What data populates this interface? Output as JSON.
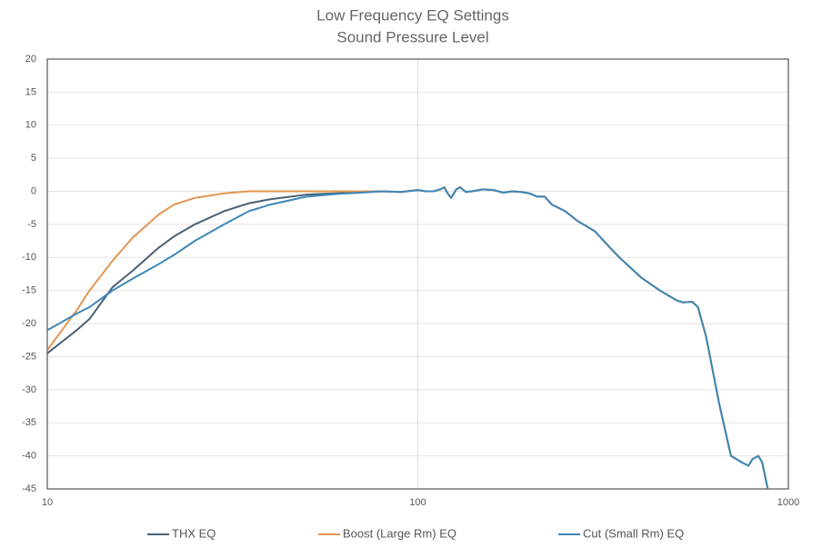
{
  "chart_data": {
    "type": "line",
    "title": "Low Frequency EQ Settings",
    "subtitle": "Sound Pressure Level",
    "x": [
      10,
      12,
      13,
      15,
      17,
      20,
      22,
      25,
      30,
      35,
      40,
      50,
      60,
      70,
      80,
      90,
      100,
      105,
      110,
      115,
      118,
      120,
      123,
      127,
      130,
      135,
      140,
      150,
      160,
      170,
      180,
      190,
      200,
      210,
      220,
      230,
      250,
      270,
      300,
      330,
      350,
      400,
      450,
      500,
      520,
      550,
      570,
      600,
      650,
      700,
      750,
      780,
      800,
      830,
      850,
      880
    ],
    "xlim": [
      10,
      1000
    ],
    "xticks": [
      10,
      100,
      1000
    ],
    "xscale": "log",
    "ylim": [
      -45,
      20
    ],
    "yticks": [
      20,
      15,
      10,
      5,
      0,
      -5,
      -10,
      -15,
      -20,
      -25,
      -30,
      -35,
      -40,
      -45
    ],
    "grid": true,
    "legend": "bottom",
    "series": [
      {
        "name": "THX EQ",
        "color": "#4b5f74",
        "values": [
          -24.5,
          -21,
          -19.3,
          -14.5,
          -12,
          -8.5,
          -6.8,
          -5,
          -3,
          -1.8,
          -1.2,
          -0.5,
          -0.3,
          -0.1,
          0,
          -0.1,
          0.2,
          0,
          0,
          0.3,
          0.6,
          -0.2,
          -1,
          0.3,
          0.6,
          -0.1,
          0,
          0.3,
          0.2,
          -0.2,
          0,
          -0.1,
          -0.3,
          -0.8,
          -0.8,
          -2,
          -3,
          -4.5,
          -6,
          -8.5,
          -10,
          -13,
          -15,
          -16.5,
          -16.8,
          -16.7,
          -17.5,
          -22,
          -32,
          -40,
          -41,
          -41.5,
          -40.5,
          -40,
          -41,
          -45
        ]
      },
      {
        "name": "Boost (Large Rm) EQ",
        "color": "#e39550",
        "values": [
          -24,
          -18,
          -15,
          -10.5,
          -7,
          -3.5,
          -2,
          -1,
          -0.3,
          0,
          0,
          0,
          0,
          0,
          0,
          -0.1,
          0.2,
          0,
          0,
          0.3,
          0.6,
          -0.2,
          -1,
          0.3,
          0.6,
          -0.1,
          0,
          0.3,
          0.2,
          -0.2,
          0,
          -0.1,
          -0.3,
          -0.8,
          -0.8,
          -2,
          -3,
          -4.5,
          -6,
          -8.5,
          -10,
          -13,
          -15,
          -16.5,
          -16.8,
          -16.7,
          -17.5,
          -22,
          -32,
          -40,
          -41,
          -41.5,
          -40.5,
          -40,
          -41,
          -45
        ]
      },
      {
        "name": "Cut (Small Rm) EQ",
        "color": "#3d87b7",
        "values": [
          -21,
          -18.5,
          -17.5,
          -15,
          -13.2,
          -11,
          -9.6,
          -7.5,
          -5,
          -3,
          -2,
          -0.8,
          -0.4,
          -0.2,
          0,
          -0.1,
          0.2,
          0,
          0,
          0.3,
          0.6,
          -0.2,
          -1,
          0.3,
          0.6,
          -0.1,
          0,
          0.3,
          0.2,
          -0.2,
          0,
          -0.1,
          -0.3,
          -0.8,
          -0.8,
          -2,
          -3,
          -4.5,
          -6,
          -8.5,
          -10,
          -13,
          -15,
          -16.5,
          -16.8,
          -16.7,
          -17.5,
          -22,
          -32,
          -40,
          -41,
          -41.5,
          -40.5,
          -40,
          -41,
          -45
        ]
      }
    ]
  }
}
